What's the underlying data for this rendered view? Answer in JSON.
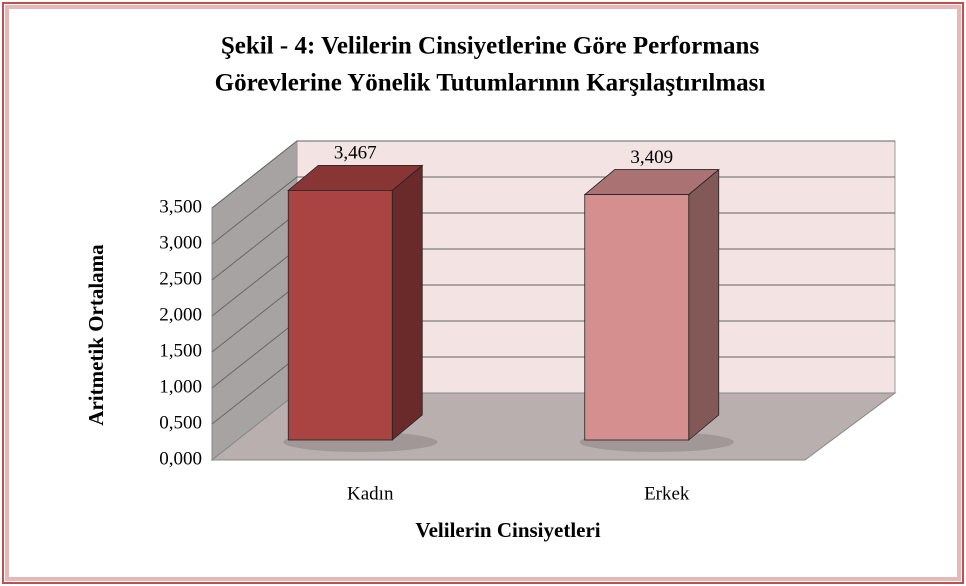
{
  "chart_data": {
    "type": "bar3d",
    "title": [
      "Şekil - 4: Velilerin Cinsiyetlerine Göre Performans",
      "Görevlerine Yönelik Tutumlarının Karşılaştırılması"
    ],
    "x_label": "Velilerin Cinsiyetleri",
    "y_label": "Aritmetik Ortalama",
    "categories": [
      "Kadın",
      "Erkek"
    ],
    "values": [
      3.467,
      3.409
    ],
    "value_labels": [
      "3,467",
      "3,409"
    ],
    "colors": [
      "#a94442",
      "#d48f8e"
    ],
    "ylim": [
      0,
      3.5
    ],
    "yticks": [
      {
        "value": 0,
        "label": "0,000"
      },
      {
        "value": 0.5,
        "label": "0,500"
      },
      {
        "value": 1,
        "label": "1,000"
      },
      {
        "value": 1.5,
        "label": "1,500"
      },
      {
        "value": 2,
        "label": "2,000"
      },
      {
        "value": 2.5,
        "label": "2,500"
      },
      {
        "value": 3,
        "label": "3,000"
      },
      {
        "value": 3.5,
        "label": "3,500"
      }
    ],
    "grid": true
  }
}
